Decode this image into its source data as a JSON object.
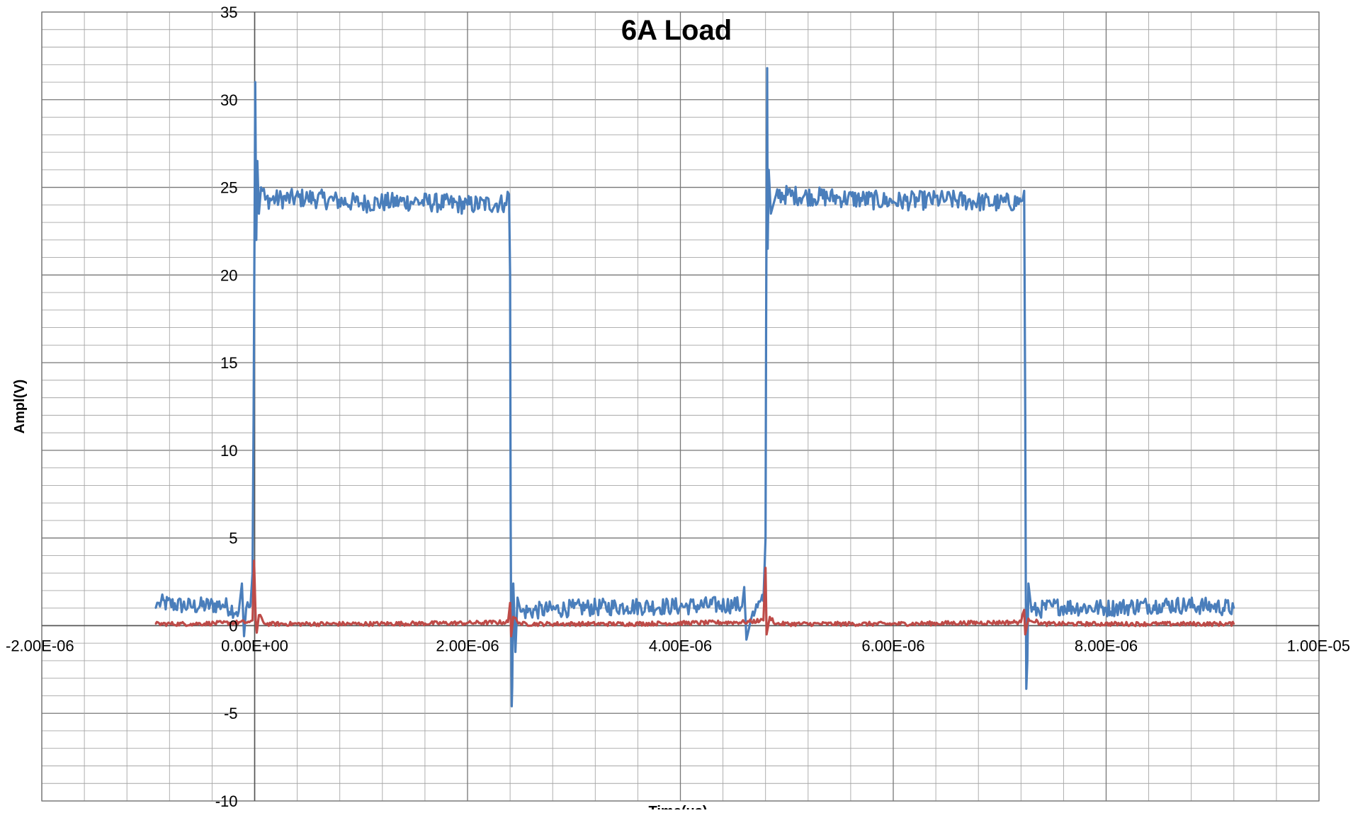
{
  "chart_data": {
    "type": "line",
    "title": "6A Load",
    "xlabel": "Time(us)",
    "ylabel": "Ampl(V)",
    "xlim": [
      -2e-06,
      1e-05
    ],
    "ylim": [
      -10,
      35
    ],
    "x_major_step": 2e-06,
    "x_minor_step": 4e-07,
    "y_major_step": 5,
    "y_minor_step": 1,
    "y_tick_labels": [
      "-10",
      "-5",
      "0",
      "5",
      "10",
      "15",
      "20",
      "25",
      "30",
      "35"
    ],
    "x_tick_labels": [
      "-2.00E-06",
      "0.00E+00",
      "2.00E-06",
      "4.00E-06",
      "6.00E-06",
      "8.00E-06",
      "1.00E-05"
    ],
    "grid": true,
    "legend": "none",
    "colors": {
      "series1": "#4A7EBB",
      "series2": "#BE4B48",
      "grid": "#888888"
    },
    "series": [
      {
        "color": "#4A7EBB",
        "points": [
          [
            -9.3e-07,
            1.0
          ],
          [
            -9e-07,
            1.3
          ],
          [
            -6e-07,
            1.1
          ],
          [
            -3e-07,
            1.2
          ],
          [
            -1.5e-07,
            0.8
          ],
          [
            -1.2e-07,
            2.4
          ],
          [
            -1e-07,
            -0.6
          ],
          [
            -8e-08,
            1.0
          ],
          [
            -4e-08,
            1.1
          ],
          [
            -2e-08,
            3.0
          ],
          [
            -1e-08,
            12.0
          ],
          [
            0.0,
            24.0
          ],
          [
            5e-09,
            31.0
          ],
          [
            1.5e-08,
            22.0
          ],
          [
            2.5e-08,
            26.5
          ],
          [
            4e-08,
            23.5
          ],
          [
            6e-08,
            25.0
          ],
          [
            1e-07,
            24.3
          ],
          [
            5e-07,
            24.4
          ],
          [
            1e-06,
            24.1
          ],
          [
            1.5e-06,
            24.2
          ],
          [
            2e-06,
            24.0
          ],
          [
            2.35e-06,
            24.1
          ],
          [
            2.39e-06,
            24.6
          ],
          [
            2.4e-06,
            20.0
          ],
          [
            2.405e-06,
            6.0
          ],
          [
            2.41e-06,
            0.2
          ],
          [
            2.415e-06,
            -4.6
          ],
          [
            2.42e-06,
            -3.5
          ],
          [
            2.43e-06,
            2.4
          ],
          [
            2.45e-06,
            -1.5
          ],
          [
            2.47e-06,
            1.6
          ],
          [
            2.5e-06,
            0.8
          ],
          [
            3e-06,
            1.0
          ],
          [
            3.5e-06,
            1.1
          ],
          [
            4e-06,
            1.1
          ],
          [
            4.5e-06,
            1.2
          ],
          [
            4.58e-06,
            1.1
          ],
          [
            4.6e-06,
            2.2
          ],
          [
            4.62e-06,
            -0.8
          ],
          [
            4.68e-06,
            0.8
          ],
          [
            4.78e-06,
            1.4
          ],
          [
            4.8e-06,
            5.0
          ],
          [
            4.805e-06,
            17.0
          ],
          [
            4.81e-06,
            24.0
          ],
          [
            4.815e-06,
            31.8
          ],
          [
            4.82e-06,
            21.5
          ],
          [
            4.83e-06,
            26.0
          ],
          [
            4.85e-06,
            23.5
          ],
          [
            4.9e-06,
            24.6
          ],
          [
            5.5e-06,
            24.4
          ],
          [
            6e-06,
            24.2
          ],
          [
            6.5e-06,
            24.3
          ],
          [
            7e-06,
            24.1
          ],
          [
            7.2e-06,
            24.2
          ],
          [
            7.23e-06,
            24.8
          ],
          [
            7.24e-06,
            12.0
          ],
          [
            7.245e-06,
            2.0
          ],
          [
            7.25e-06,
            -3.6
          ],
          [
            7.26e-06,
            -2.0
          ],
          [
            7.27e-06,
            2.4
          ],
          [
            7.3e-06,
            0.8
          ],
          [
            7.5e-06,
            1.1
          ],
          [
            8e-06,
            1.0
          ],
          [
            8.5e-06,
            1.2
          ],
          [
            9e-06,
            1.1
          ],
          [
            9.2e-06,
            1.0
          ]
        ]
      },
      {
        "color": "#BE4B48",
        "points": [
          [
            -9.3e-07,
            0.1
          ],
          [
            -6e-07,
            0.1
          ],
          [
            -3e-07,
            0.15
          ],
          [
            -5e-08,
            0.2
          ],
          [
            -2e-08,
            0.3
          ],
          [
            -5e-09,
            3.7
          ],
          [
            1e-08,
            0.3
          ],
          [
            2e-08,
            -0.4
          ],
          [
            4e-08,
            0.6
          ],
          [
            1e-07,
            0.1
          ],
          [
            1e-06,
            0.1
          ],
          [
            2e-06,
            0.15
          ],
          [
            2.38e-06,
            0.2
          ],
          [
            2.4e-06,
            1.3
          ],
          [
            2.41e-06,
            -0.6
          ],
          [
            2.43e-06,
            0.5
          ],
          [
            2.5e-06,
            0.1
          ],
          [
            3.5e-06,
            0.1
          ],
          [
            4.6e-06,
            0.2
          ],
          [
            4.78e-06,
            0.3
          ],
          [
            4.8e-06,
            3.3
          ],
          [
            4.81e-06,
            -0.5
          ],
          [
            4.84e-06,
            0.5
          ],
          [
            4.9e-06,
            0.1
          ],
          [
            6e-06,
            0.1
          ],
          [
            7.2e-06,
            0.2
          ],
          [
            7.23e-06,
            0.9
          ],
          [
            7.24e-06,
            -0.5
          ],
          [
            7.27e-06,
            0.4
          ],
          [
            7.4e-06,
            0.1
          ],
          [
            8.5e-06,
            0.1
          ],
          [
            9.2e-06,
            0.1
          ]
        ]
      }
    ]
  }
}
